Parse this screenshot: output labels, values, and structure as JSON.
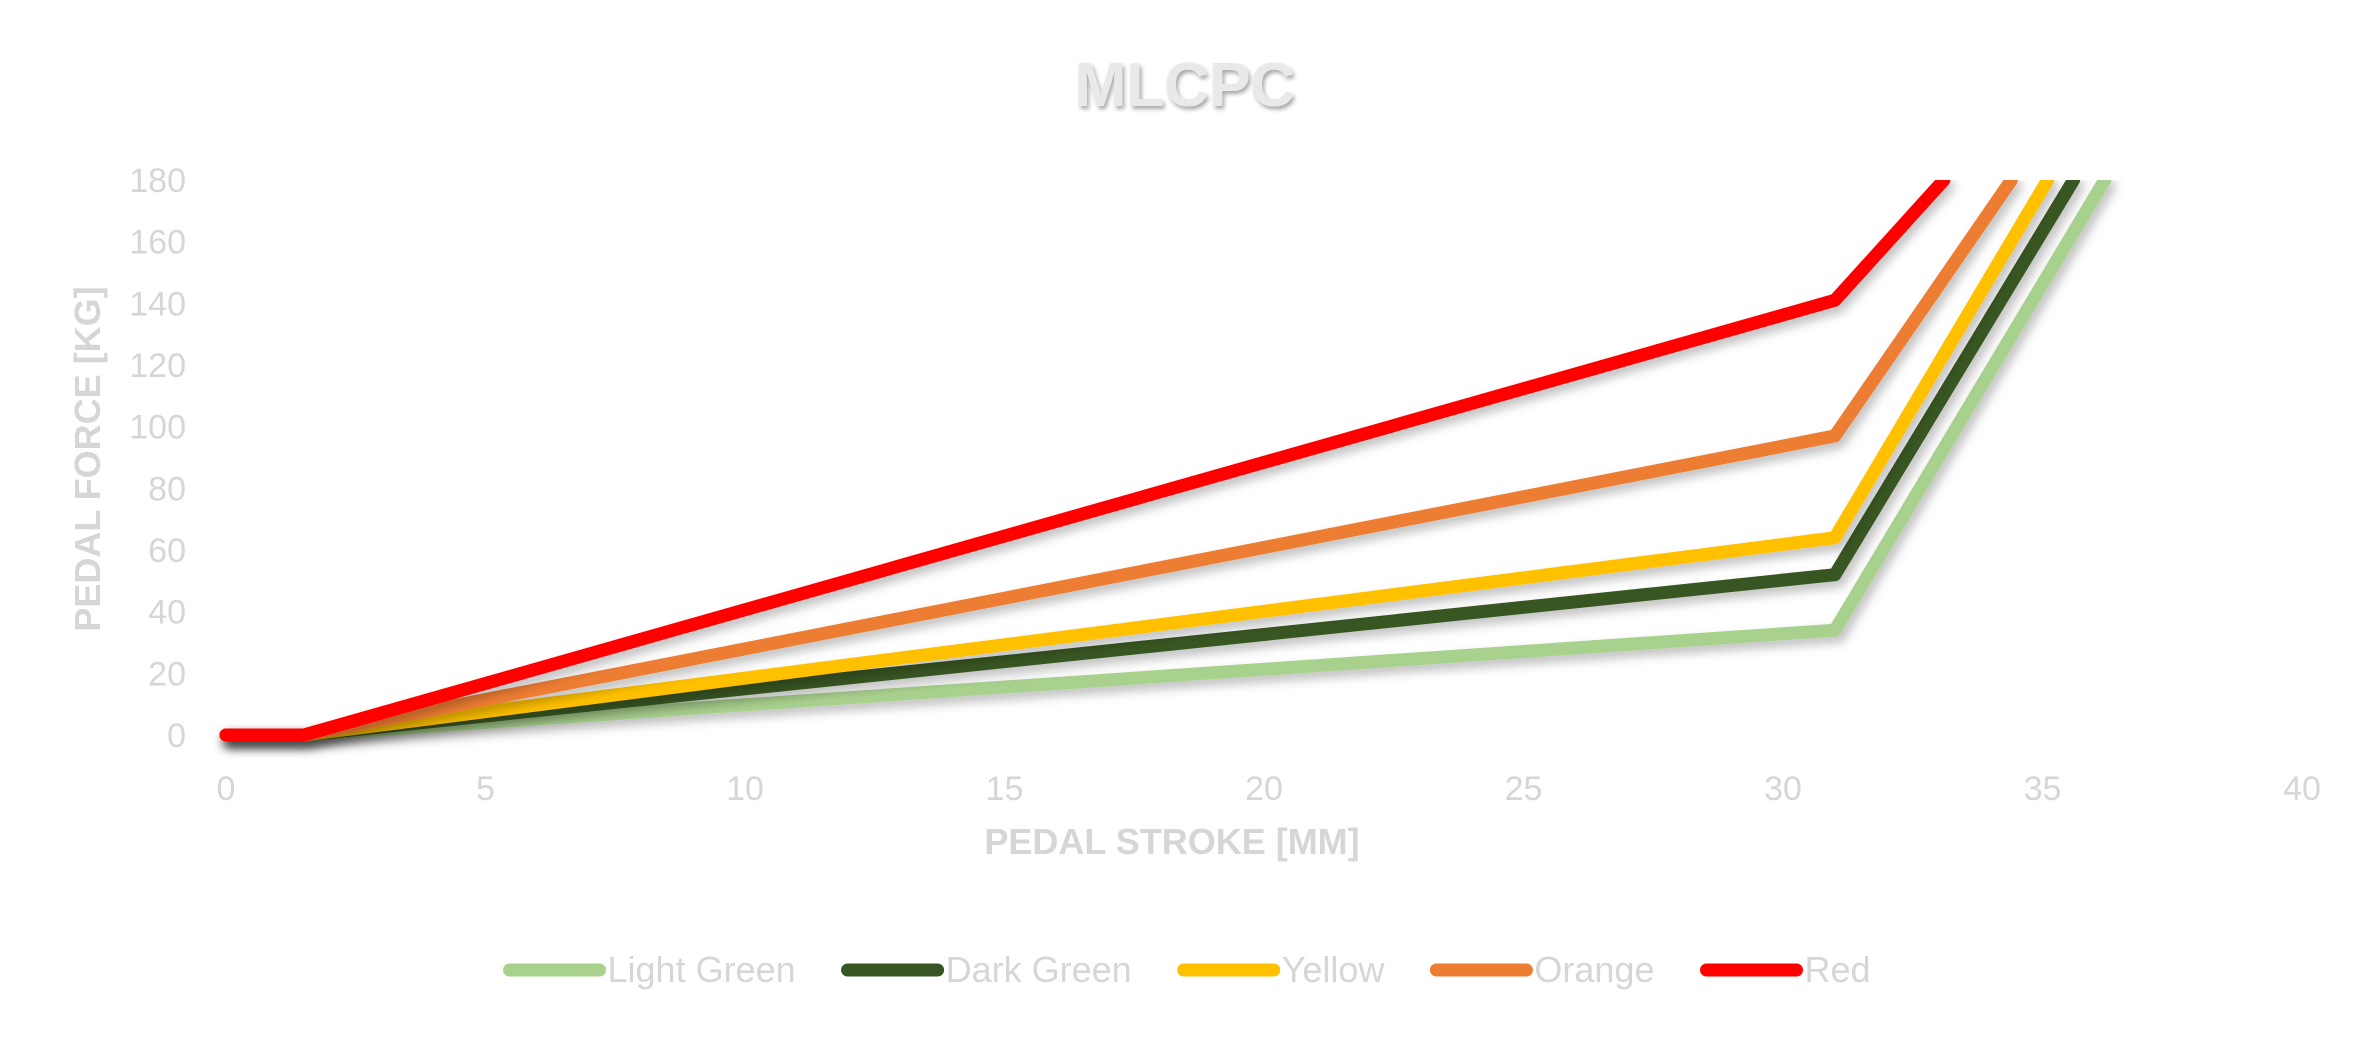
{
  "chart_data": {
    "type": "line",
    "title": "MLCPC",
    "xlabel": "PEDAL STROKE [MM]",
    "ylabel": "PEDAL FORCE [KG]",
    "xlim": [
      0,
      40
    ],
    "ylim": [
      0,
      180
    ],
    "xticks": [
      "0",
      "5",
      "10",
      "15",
      "20",
      "25",
      "30",
      "35",
      "40"
    ],
    "yticks": [
      "0",
      "20",
      "40",
      "60",
      "80",
      "100",
      "120",
      "140",
      "160",
      "180"
    ],
    "grid": false,
    "legend_position": "bottom",
    "series": [
      {
        "name": "Light Green",
        "color": "#a9d18e",
        "points": [
          [
            0,
            0
          ],
          [
            1.5,
            0
          ],
          [
            31,
            34
          ],
          [
            36.2,
            180
          ]
        ]
      },
      {
        "name": "Dark Green",
        "color": "#375623",
        "points": [
          [
            0,
            0
          ],
          [
            1.5,
            0
          ],
          [
            31,
            52
          ],
          [
            35.6,
            180
          ]
        ]
      },
      {
        "name": "Yellow",
        "color": "#ffc000",
        "points": [
          [
            0,
            0
          ],
          [
            1.5,
            0
          ],
          [
            31,
            64
          ],
          [
            35.1,
            180
          ]
        ]
      },
      {
        "name": "Orange",
        "color": "#ed7d31",
        "points": [
          [
            0,
            0
          ],
          [
            1.5,
            0
          ],
          [
            31,
            97
          ],
          [
            34.4,
            180
          ]
        ]
      },
      {
        "name": "Red",
        "color": "#ff0000",
        "points": [
          [
            0,
            0
          ],
          [
            1.5,
            0
          ],
          [
            31,
            141
          ],
          [
            33.1,
            180
          ]
        ]
      }
    ]
  }
}
